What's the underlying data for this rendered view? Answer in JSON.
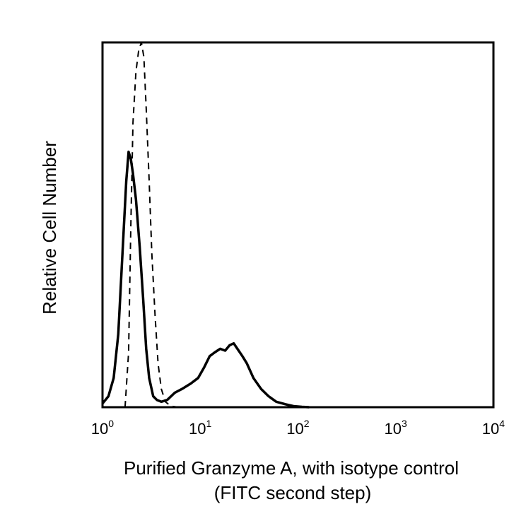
{
  "chart_data": {
    "type": "line",
    "title": "",
    "xlabel_line1": "Purified Granzyme A, with isotype control",
    "xlabel_line2": "(FITC second step)",
    "ylabel": "Relative Cell Number",
    "x_scale": "log",
    "xlim": [
      1,
      10000
    ],
    "ylim": [
      0,
      100
    ],
    "x_ticks": [
      {
        "base": "10",
        "exp": "0",
        "value": 1
      },
      {
        "base": "10",
        "exp": "1",
        "value": 10
      },
      {
        "base": "10",
        "exp": "2",
        "value": 100
      },
      {
        "base": "10",
        "exp": "3",
        "value": 1000
      },
      {
        "base": "10",
        "exp": "4",
        "value": 10000
      }
    ],
    "grid": false,
    "legend": "none",
    "series": [
      {
        "style": "solid",
        "color": "#000000",
        "x": [
          1.0,
          1.15,
          1.3,
          1.45,
          1.6,
          1.75,
          1.85,
          1.95,
          2.05,
          2.2,
          2.4,
          2.6,
          2.8,
          3.0,
          3.3,
          3.6,
          4.0,
          4.6,
          5.5,
          6.5,
          8.0,
          9.5,
          11.0,
          12.5,
          14.0,
          16.0,
          18.0,
          20.0,
          22.0,
          24.0,
          27.0,
          30.0,
          35.0,
          42.0,
          50.0,
          60.0,
          75.0,
          90.0,
          110.0,
          130.0
        ],
        "y": [
          1,
          3,
          8,
          20,
          42,
          62,
          70,
          68,
          64,
          57,
          44,
          30,
          16,
          8,
          3,
          2,
          1.5,
          2,
          4,
          5,
          6.5,
          8,
          11,
          14,
          15,
          16,
          15.5,
          17,
          17.5,
          16,
          14,
          12,
          8,
          5,
          3,
          1.5,
          0.8,
          0.3,
          0.1,
          0
        ]
      },
      {
        "style": "dashed",
        "color": "#000000",
        "x": [
          1.7,
          1.85,
          1.95,
          2.05,
          2.2,
          2.35,
          2.5,
          2.65,
          2.8,
          3.0,
          3.2,
          3.45,
          3.7,
          4.0,
          4.4,
          5.0,
          6.0
        ],
        "y": [
          0,
          15,
          50,
          78,
          92,
          98,
          100,
          96,
          82,
          62,
          42,
          25,
          12,
          5,
          1.5,
          0.3,
          0
        ]
      }
    ]
  }
}
